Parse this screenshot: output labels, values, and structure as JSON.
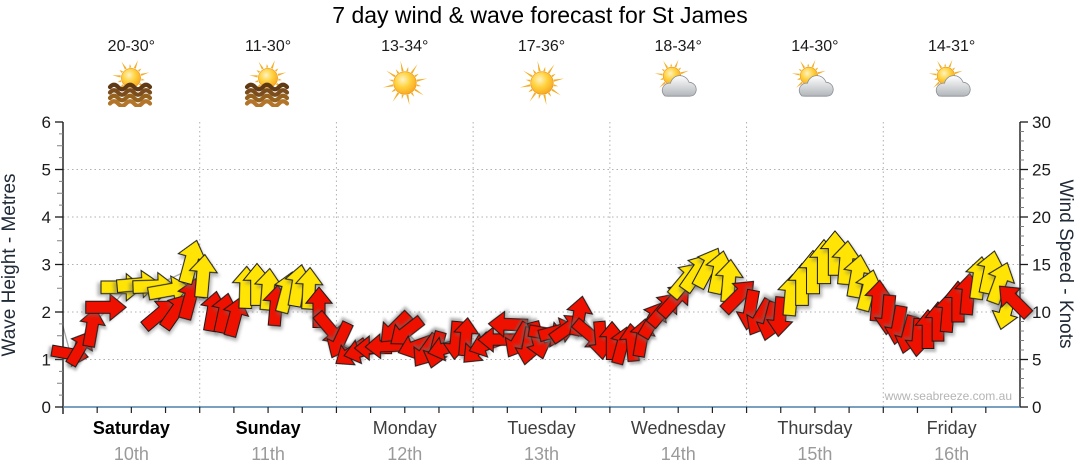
{
  "title": "7 day wind & wave forecast for St James",
  "watermark": "www.seabreeze.com.au",
  "colors": {
    "arrow_red": "#ee1100",
    "arrow_yellow": "#ffe405",
    "x_axis_line": "#4d80aa",
    "gridline": "#b0b0b0",
    "weekend_label": "#000000",
    "weekday_label": "#3d3d3d",
    "date_label": "#9a9a9a",
    "watermark": "#b4b4b4"
  },
  "days": [
    {
      "name": "Saturday",
      "date": "10th",
      "temp": "20-30°",
      "icon": "sun-over-water",
      "emphasis": true
    },
    {
      "name": "Sunday",
      "date": "11th",
      "temp": "11-30°",
      "icon": "sun-over-water",
      "emphasis": true
    },
    {
      "name": "Monday",
      "date": "12th",
      "temp": "13-34°",
      "icon": "sunny",
      "emphasis": false
    },
    {
      "name": "Tuesday",
      "date": "13th",
      "temp": "17-36°",
      "icon": "sunny",
      "emphasis": false
    },
    {
      "name": "Wednesday",
      "date": "14th",
      "temp": "18-34°",
      "icon": "sun-cloud",
      "emphasis": false
    },
    {
      "name": "Thursday",
      "date": "15th",
      "temp": "14-30°",
      "icon": "sun-cloud",
      "emphasis": false
    },
    {
      "name": "Friday",
      "date": "16th",
      "temp": "14-31°",
      "icon": "sun-cloud",
      "emphasis": false
    }
  ],
  "chart_data": {
    "type": "wind-arrows",
    "title": "7 day wind & wave forecast for St James",
    "y_left": {
      "label": "Wave Height - Metres",
      "min": 0,
      "max": 6,
      "ticks": [
        0,
        1,
        2,
        3,
        4,
        5,
        6
      ],
      "gridlines": [
        1,
        2,
        3,
        4,
        5
      ]
    },
    "y_right": {
      "label": "Wind Speed - Knots",
      "min": 0,
      "max": 30,
      "ticks": [
        0,
        5,
        10,
        15,
        20,
        25,
        30
      ]
    },
    "x_categories": [
      "Saturday 10th",
      "Sunday 11th",
      "Monday 12th",
      "Tuesday 13th",
      "Wednesday 14th",
      "Thursday 15th",
      "Friday 16th"
    ],
    "grid": "dotted, horizontal each metre (=5 knots), vertical at day boundaries",
    "legend": "none",
    "arrow_format": [
      "x_px_in_1080w_image",
      "wind_speed_knots",
      "direction_deg_arrow_points_0_is_up",
      "color r=red y=yellow"
    ],
    "arrows": [
      [
        70,
        5.6,
        100,
        "r"
      ],
      [
        80,
        6.2,
        30,
        "r"
      ],
      [
        92,
        8.4,
        10,
        "r"
      ],
      [
        106,
        10.5,
        90,
        "r"
      ],
      [
        122,
        12.6,
        90,
        "y"
      ],
      [
        138,
        12.9,
        85,
        "y"
      ],
      [
        154,
        12.7,
        88,
        "y"
      ],
      [
        169,
        12.3,
        80,
        "y"
      ],
      [
        160,
        9.8,
        50,
        "r"
      ],
      [
        176,
        10.1,
        35,
        "r"
      ],
      [
        190,
        11.4,
        15,
        "r"
      ],
      [
        191,
        15.3,
        15,
        "y"
      ],
      [
        203,
        13.8,
        5,
        "y"
      ],
      [
        213,
        10.1,
        10,
        "r"
      ],
      [
        224,
        9.9,
        12,
        "r"
      ],
      [
        235,
        9.5,
        15,
        "r"
      ],
      [
        246,
        12.6,
        2,
        "y"
      ],
      [
        257,
        12.9,
        0,
        "y"
      ],
      [
        268,
        12.4,
        5,
        "y"
      ],
      [
        276,
        10.7,
        5,
        "r"
      ],
      [
        287,
        12.1,
        15,
        "y"
      ],
      [
        298,
        12.8,
        10,
        "y"
      ],
      [
        309,
        12.5,
        3,
        "y"
      ],
      [
        319,
        10.5,
        0,
        "r"
      ],
      [
        330,
        8.2,
        140,
        "r"
      ],
      [
        340,
        7.0,
        205,
        "r"
      ],
      [
        351,
        5.7,
        235,
        "r"
      ],
      [
        362,
        5.9,
        255,
        "r"
      ],
      [
        373,
        6.2,
        270,
        "r"
      ],
      [
        384,
        6.4,
        268,
        "r"
      ],
      [
        395,
        8.3,
        225,
        "r"
      ],
      [
        406,
        7.9,
        232,
        "r"
      ],
      [
        416,
        6.4,
        250,
        "r"
      ],
      [
        426,
        5.9,
        215,
        "r"
      ],
      [
        436,
        6.0,
        195,
        "r"
      ],
      [
        446,
        6.2,
        255,
        "r"
      ],
      [
        456,
        7.0,
        185,
        "r"
      ],
      [
        466,
        7.4,
        5,
        "r"
      ],
      [
        477,
        6.1,
        225,
        "r"
      ],
      [
        487,
        6.6,
        250,
        "r"
      ],
      [
        497,
        7.1,
        270,
        "r"
      ],
      [
        508,
        8.7,
        272,
        "r"
      ],
      [
        518,
        7.0,
        210,
        "r"
      ],
      [
        528,
        6.4,
        190,
        "r"
      ],
      [
        538,
        7.0,
        165,
        "r"
      ],
      [
        548,
        7.7,
        100,
        "r"
      ],
      [
        558,
        8.0,
        75,
        "r"
      ],
      [
        568,
        8.3,
        55,
        "r"
      ],
      [
        579,
        9.6,
        10,
        "r"
      ],
      [
        590,
        7.6,
        130,
        "r"
      ],
      [
        601,
        7.0,
        175,
        "r"
      ],
      [
        612,
        7.0,
        0,
        "r"
      ],
      [
        622,
        6.5,
        15,
        "r"
      ],
      [
        632,
        6.8,
        355,
        "r"
      ],
      [
        642,
        7.3,
        10,
        "r"
      ],
      [
        653,
        9.2,
        30,
        "r"
      ],
      [
        664,
        10.3,
        40,
        "r"
      ],
      [
        675,
        11.3,
        42,
        "r"
      ],
      [
        686,
        13.4,
        40,
        "y"
      ],
      [
        697,
        14.2,
        35,
        "y"
      ],
      [
        708,
        14.7,
        28,
        "y"
      ],
      [
        719,
        14.2,
        12,
        "y"
      ],
      [
        729,
        13.3,
        5,
        "y"
      ],
      [
        739,
        11.7,
        45,
        "r"
      ],
      [
        750,
        10.2,
        190,
        "r"
      ],
      [
        760,
        9.4,
        210,
        "r"
      ],
      [
        770,
        9.0,
        195,
        "r"
      ],
      [
        780,
        9.5,
        185,
        "r"
      ],
      [
        791,
        11.8,
        5,
        "y"
      ],
      [
        802,
        12.9,
        0,
        "y"
      ],
      [
        813,
        14.2,
        0,
        "y"
      ],
      [
        824,
        15.3,
        0,
        "y"
      ],
      [
        835,
        16.2,
        0,
        "y"
      ],
      [
        846,
        15.2,
        5,
        "y"
      ],
      [
        857,
        13.8,
        10,
        "y"
      ],
      [
        868,
        12.3,
        15,
        "y"
      ],
      [
        878,
        11.2,
        5,
        "r"
      ],
      [
        888,
        9.7,
        185,
        "r"
      ],
      [
        898,
        8.6,
        190,
        "r"
      ],
      [
        908,
        7.6,
        195,
        "r"
      ],
      [
        918,
        7.3,
        185,
        "r"
      ],
      [
        928,
        8.2,
        0,
        "r"
      ],
      [
        938,
        9.0,
        0,
        "r"
      ],
      [
        948,
        10.0,
        5,
        "r"
      ],
      [
        958,
        11.1,
        0,
        "r"
      ],
      [
        968,
        11.9,
        5,
        "r"
      ],
      [
        979,
        13.6,
        8,
        "y"
      ],
      [
        990,
        14.2,
        12,
        "y"
      ],
      [
        1000,
        13.1,
        20,
        "y"
      ],
      [
        1006,
        10.2,
        195,
        "y"
      ],
      [
        1014,
        11.2,
        315,
        "r"
      ]
    ],
    "wave_line_metres": [
      [
        63,
        1.7
      ],
      [
        70,
        1.15
      ],
      [
        85,
        1.5
      ],
      [
        100,
        1.9
      ],
      [
        115,
        2.2
      ],
      [
        130,
        2.6
      ],
      [
        160,
        2.6
      ],
      [
        190,
        2.9
      ],
      [
        205,
        2.3
      ],
      [
        215,
        2.0
      ],
      [
        235,
        2.0
      ],
      [
        250,
        2.6
      ],
      [
        270,
        2.4
      ],
      [
        295,
        2.6
      ],
      [
        315,
        2.2
      ],
      [
        330,
        1.7
      ],
      [
        345,
        1.3
      ],
      [
        360,
        1.15
      ],
      [
        380,
        1.25
      ],
      [
        400,
        1.7
      ],
      [
        420,
        1.3
      ],
      [
        440,
        1.2
      ],
      [
        460,
        1.45
      ],
      [
        480,
        1.25
      ],
      [
        500,
        1.45
      ],
      [
        520,
        1.35
      ],
      [
        540,
        1.45
      ],
      [
        560,
        1.6
      ],
      [
        580,
        1.95
      ],
      [
        600,
        1.45
      ],
      [
        615,
        1.4
      ],
      [
        630,
        1.35
      ],
      [
        650,
        1.85
      ],
      [
        670,
        2.15
      ],
      [
        690,
        2.7
      ],
      [
        710,
        2.95
      ],
      [
        730,
        2.7
      ],
      [
        745,
        2.3
      ],
      [
        760,
        1.9
      ],
      [
        780,
        1.9
      ],
      [
        800,
        2.6
      ],
      [
        820,
        3.0
      ],
      [
        835,
        3.25
      ],
      [
        855,
        2.8
      ],
      [
        875,
        2.3
      ],
      [
        890,
        1.95
      ],
      [
        905,
        1.55
      ],
      [
        920,
        1.45
      ],
      [
        935,
        1.8
      ],
      [
        950,
        2.0
      ],
      [
        965,
        2.4
      ],
      [
        980,
        2.75
      ],
      [
        990,
        2.85
      ],
      [
        1000,
        2.65
      ],
      [
        1010,
        2.2
      ],
      [
        1018,
        2.1
      ]
    ]
  }
}
